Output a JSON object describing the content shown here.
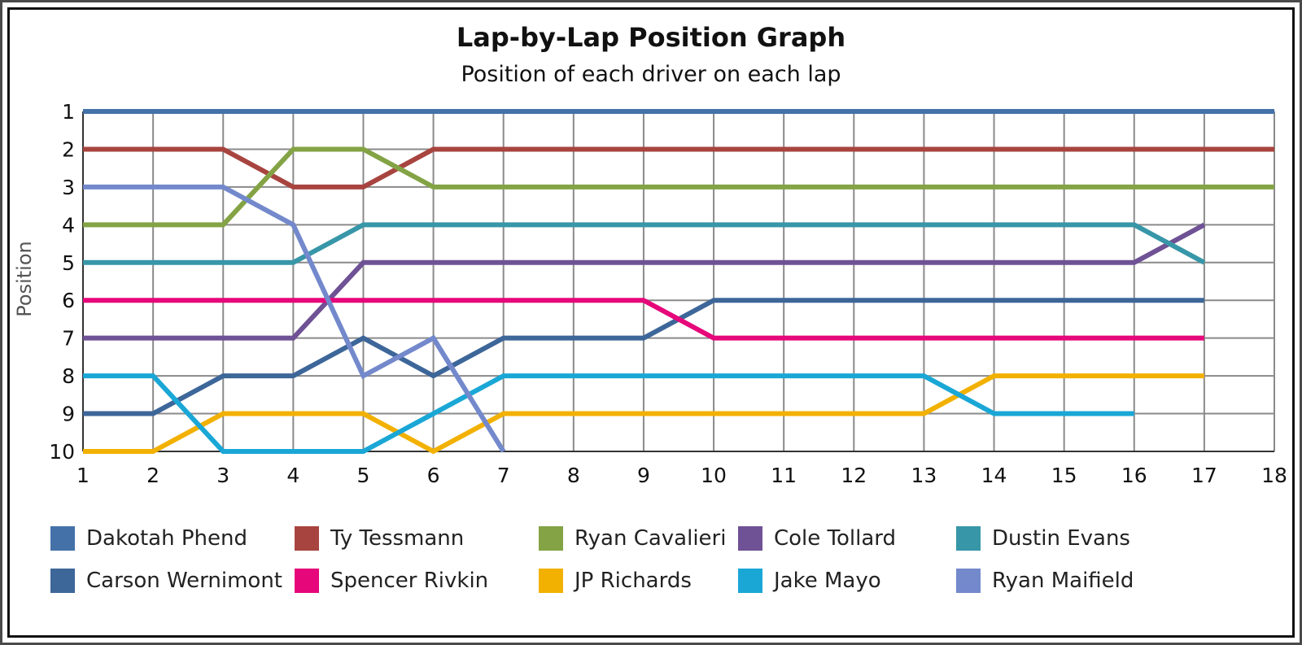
{
  "chart_data": {
    "type": "line",
    "title": "Lap-by-Lap Position Graph",
    "subtitle": "Position of each driver on each lap",
    "xlabel": "",
    "ylabel": "Position",
    "x_ticks": [
      1,
      2,
      3,
      4,
      5,
      6,
      7,
      8,
      9,
      10,
      11,
      12,
      13,
      14,
      15,
      16,
      17,
      18
    ],
    "y_ticks": [
      1,
      2,
      3,
      4,
      5,
      6,
      7,
      8,
      9,
      10
    ],
    "xlim": [
      1,
      18
    ],
    "ylim": [
      1,
      10
    ],
    "y_inverted": true,
    "grid": true,
    "legend_position": "bottom",
    "series": [
      {
        "name": "Dakotah Phend",
        "color": "#4472a8",
        "x": [
          1,
          2,
          3,
          4,
          5,
          6,
          7,
          8,
          9,
          10,
          11,
          12,
          13,
          14,
          15,
          16,
          17,
          18
        ],
        "values": [
          1,
          1,
          1,
          1,
          1,
          1,
          1,
          1,
          1,
          1,
          1,
          1,
          1,
          1,
          1,
          1,
          1,
          1
        ]
      },
      {
        "name": "Ty Tessmann",
        "color": "#a8443f",
        "x": [
          1,
          2,
          3,
          4,
          5,
          6,
          7,
          8,
          9,
          10,
          11,
          12,
          13,
          14,
          15,
          16,
          17,
          18
        ],
        "values": [
          2,
          2,
          2,
          3,
          3,
          2,
          2,
          2,
          2,
          2,
          2,
          2,
          2,
          2,
          2,
          2,
          2,
          2
        ]
      },
      {
        "name": "Ryan Cavalieri",
        "color": "#84a345",
        "x": [
          1,
          2,
          3,
          4,
          5,
          6,
          7,
          8,
          9,
          10,
          11,
          12,
          13,
          14,
          15,
          16,
          17,
          18
        ],
        "values": [
          4,
          4,
          4,
          2,
          2,
          3,
          3,
          3,
          3,
          3,
          3,
          3,
          3,
          3,
          3,
          3,
          3,
          3
        ]
      },
      {
        "name": "Cole Tollard",
        "color": "#6f5195",
        "x": [
          1,
          2,
          3,
          4,
          5,
          6,
          7,
          8,
          9,
          10,
          11,
          12,
          13,
          14,
          15,
          16,
          17
        ],
        "values": [
          7,
          7,
          7,
          7,
          5,
          5,
          5,
          5,
          5,
          5,
          5,
          5,
          5,
          5,
          5,
          5,
          4
        ]
      },
      {
        "name": "Dustin Evans",
        "color": "#3796a8",
        "x": [
          1,
          2,
          3,
          4,
          5,
          6,
          7,
          8,
          9,
          10,
          11,
          12,
          13,
          14,
          15,
          16,
          17
        ],
        "values": [
          5,
          5,
          5,
          5,
          4,
          4,
          4,
          4,
          4,
          4,
          4,
          4,
          4,
          4,
          4,
          4,
          5
        ]
      },
      {
        "name": "Carson Wernimont",
        "color": "#3d6699",
        "x": [
          1,
          2,
          3,
          4,
          5,
          6,
          7,
          8,
          9,
          10,
          11,
          12,
          13,
          14,
          15,
          16,
          17
        ],
        "values": [
          9,
          9,
          8,
          8,
          7,
          8,
          7,
          7,
          7,
          6,
          6,
          6,
          6,
          6,
          6,
          6,
          6
        ]
      },
      {
        "name": "Spencer Rivkin",
        "color": "#e6077a",
        "x": [
          1,
          2,
          3,
          4,
          5,
          6,
          7,
          8,
          9,
          10,
          11,
          12,
          13,
          14,
          15,
          16,
          17
        ],
        "values": [
          6,
          6,
          6,
          6,
          6,
          6,
          6,
          6,
          6,
          7,
          7,
          7,
          7,
          7,
          7,
          7,
          7
        ]
      },
      {
        "name": "JP Richards",
        "color": "#f2b100",
        "x": [
          1,
          2,
          3,
          4,
          5,
          6,
          7,
          8,
          9,
          10,
          11,
          12,
          13,
          14,
          15,
          16,
          17
        ],
        "values": [
          10,
          10,
          9,
          9,
          9,
          10,
          9,
          9,
          9,
          9,
          9,
          9,
          9,
          8,
          8,
          8,
          8
        ]
      },
      {
        "name": "Jake Mayo",
        "color": "#1aa7d6",
        "x": [
          1,
          2,
          3,
          4,
          5,
          6,
          7,
          8,
          9,
          10,
          11,
          12,
          13,
          14,
          15,
          16
        ],
        "values": [
          8,
          8,
          10,
          10,
          10,
          9,
          8,
          8,
          8,
          8,
          8,
          8,
          8,
          9,
          9,
          9
        ]
      },
      {
        "name": "Ryan Maifield",
        "color": "#7389cc",
        "x": [
          1,
          2,
          3,
          4,
          5,
          6,
          7
        ],
        "values": [
          3,
          3,
          3,
          4,
          8,
          7,
          10
        ]
      }
    ]
  }
}
